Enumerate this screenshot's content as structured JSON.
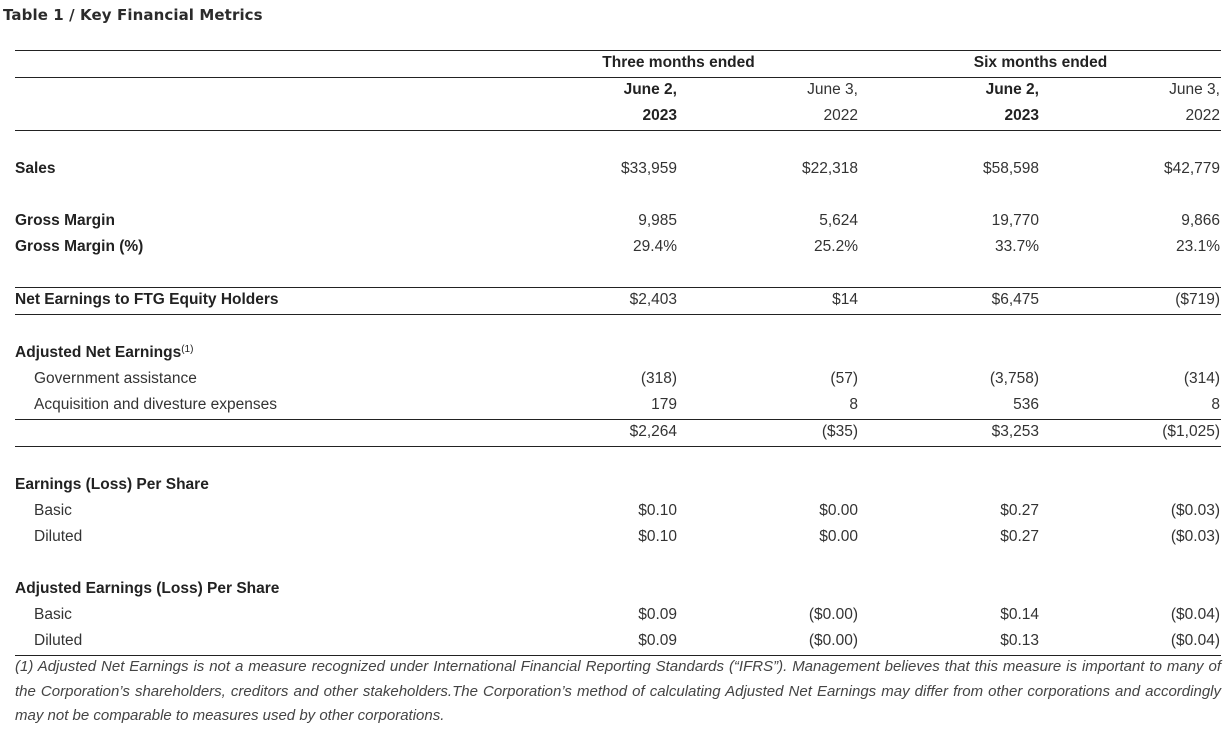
{
  "title": "Table 1 / Key Financial Metrics",
  "header": {
    "group1": "Three months ended",
    "group2": "Six months ended",
    "cols": [
      {
        "line1": "June 2,",
        "line2": "2023"
      },
      {
        "line1": "June 3,",
        "line2": "2022"
      },
      {
        "line1": "June 2,",
        "line2": "2023"
      },
      {
        "line1": "June 3,",
        "line2": "2022"
      }
    ]
  },
  "rows": {
    "sales": {
      "label": "Sales",
      "values": [
        "$33,959",
        "$22,318",
        "$58,598",
        "$42,779"
      ]
    },
    "gross_margin": {
      "label": "Gross Margin",
      "values": [
        "9,985",
        "5,624",
        "19,770",
        "9,866"
      ]
    },
    "gross_margin_pct": {
      "label": "Gross Margin (%)",
      "values": [
        "29.4%",
        "25.2%",
        "33.7%",
        "23.1%"
      ]
    },
    "net_earnings": {
      "label": "Net Earnings to FTG Equity Holders",
      "values": [
        "$2,403",
        "$14",
        "$6,475",
        "($719)"
      ]
    },
    "adjusted_net_earnings": {
      "label": "Adjusted Net Earnings",
      "footnote_ref": "(1)"
    },
    "government_assistance": {
      "label": "Government assistance",
      "values": [
        "(318)",
        "(57)",
        "(3,758)",
        "(314)"
      ]
    },
    "acquisition_expenses": {
      "label": "Acquisition and divesture expenses",
      "values": [
        "179",
        "8",
        "536",
        "8"
      ]
    },
    "adjusted_total": {
      "values": [
        "$2,264",
        "($35)",
        "$3,253",
        "($1,025)"
      ]
    },
    "eps_heading": {
      "label": "Earnings (Loss) Per Share"
    },
    "eps_basic": {
      "label": "Basic",
      "values": [
        "$0.10",
        "$0.00",
        "$0.27",
        "($0.03)"
      ]
    },
    "eps_diluted": {
      "label": "Diluted",
      "values": [
        "$0.10",
        "$0.00",
        "$0.27",
        "($0.03)"
      ]
    },
    "adj_eps_heading": {
      "label": "Adjusted Earnings (Loss) Per Share"
    },
    "adj_eps_basic": {
      "label": "Basic",
      "values": [
        "$0.09",
        "($0.00)",
        "$0.14",
        "($0.04)"
      ]
    },
    "adj_eps_diluted": {
      "label": "Diluted",
      "values": [
        "$0.09",
        "($0.00)",
        "$0.13",
        "($0.04)"
      ]
    }
  },
  "footnote": "(1) Adjusted Net Earnings is not a measure recognized under International Financial Reporting Standards (“IFRS”). Management believes that this measure is important to many of the Corporation’s shareholders, creditors and other stakeholders.The Corporation’s method of calculating Adjusted Net Earnings may differ from other corporations and accordingly may not be comparable to measures used by other corporations."
}
